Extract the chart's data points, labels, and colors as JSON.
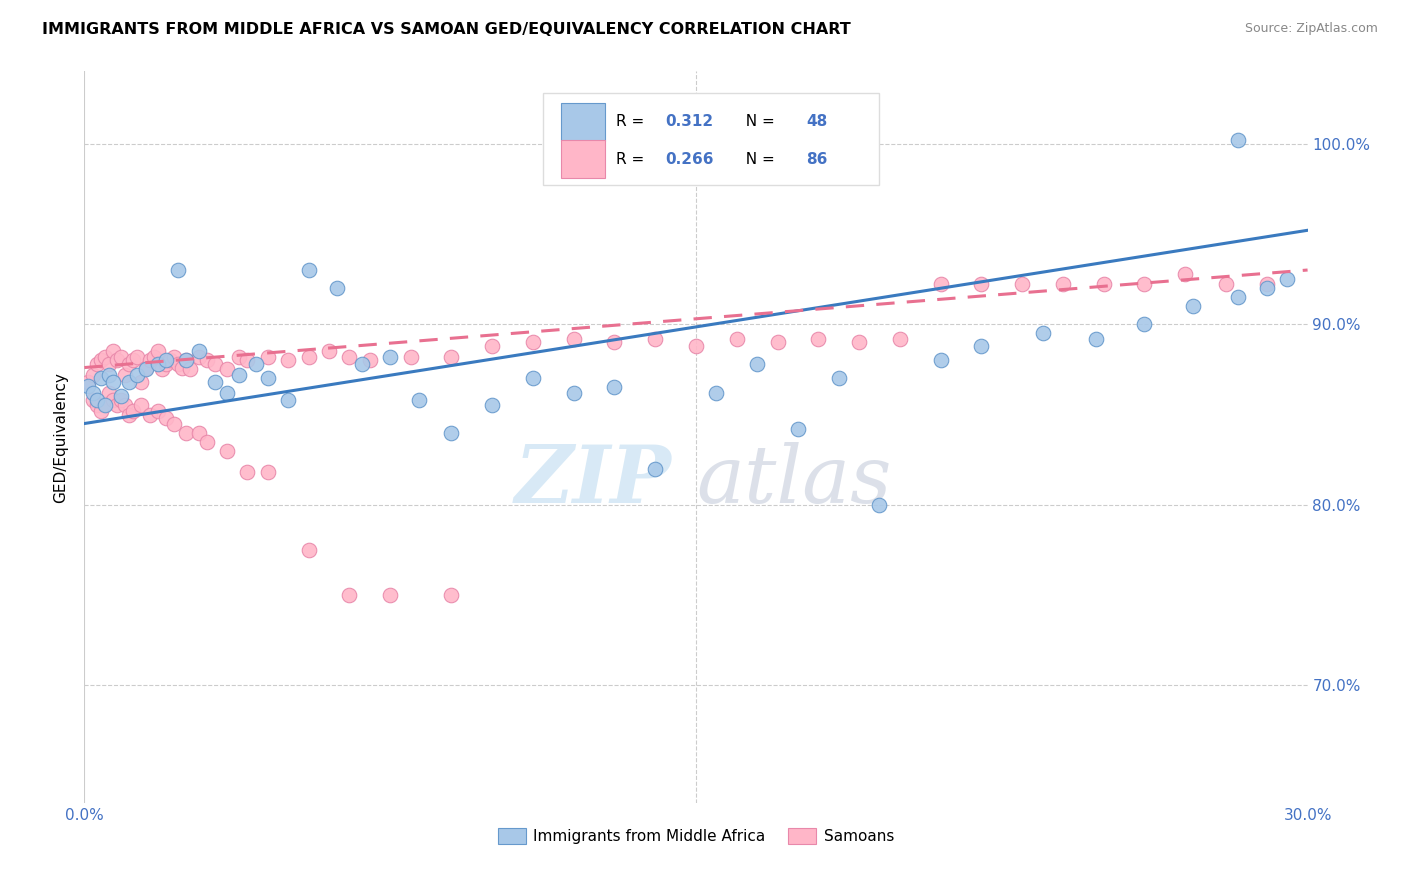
{
  "title": "IMMIGRANTS FROM MIDDLE AFRICA VS SAMOAN GED/EQUIVALENCY CORRELATION CHART",
  "source": "Source: ZipAtlas.com",
  "ylabel": "GED/Equivalency",
  "ytick_vals": [
    0.7,
    0.8,
    0.9,
    1.0
  ],
  "ytick_labels": [
    "70.0%",
    "80.0%",
    "90.0%",
    "100.0%"
  ],
  "xlim": [
    0.0,
    0.3
  ],
  "ylim": [
    0.635,
    1.04
  ],
  "xtick_left": "0.0%",
  "xtick_right": "30.0%",
  "blue_color": "#a8c8e8",
  "blue_edge_color": "#6699cc",
  "pink_color": "#ffb6c8",
  "pink_edge_color": "#e888aa",
  "blue_line_color": "#3a7abf",
  "pink_line_color": "#e87090",
  "watermark_zip_color": "#c8dff0",
  "watermark_atlas_color": "#c8c8d8",
  "legend_box_color": "#f0f0f0",
  "tick_label_color": "#4472c4",
  "blue_x": [
    0.001,
    0.002,
    0.003,
    0.004,
    0.005,
    0.006,
    0.007,
    0.009,
    0.011,
    0.013,
    0.015,
    0.018,
    0.02,
    0.023,
    0.025,
    0.028,
    0.032,
    0.035,
    0.038,
    0.042,
    0.045,
    0.05,
    0.055,
    0.062,
    0.068,
    0.075,
    0.082,
    0.09,
    0.1,
    0.11,
    0.12,
    0.13,
    0.14,
    0.155,
    0.165,
    0.175,
    0.185,
    0.195,
    0.21,
    0.22,
    0.235,
    0.248,
    0.26,
    0.272,
    0.283,
    0.29,
    0.295,
    0.283
  ],
  "blue_y": [
    0.866,
    0.862,
    0.858,
    0.87,
    0.855,
    0.872,
    0.868,
    0.86,
    0.868,
    0.872,
    0.875,
    0.878,
    0.88,
    0.93,
    0.88,
    0.885,
    0.868,
    0.862,
    0.872,
    0.878,
    0.87,
    0.858,
    0.93,
    0.92,
    0.878,
    0.882,
    0.858,
    0.84,
    0.855,
    0.87,
    0.862,
    0.865,
    0.82,
    0.862,
    0.878,
    0.842,
    0.87,
    0.8,
    0.88,
    0.888,
    0.895,
    0.892,
    0.9,
    0.91,
    0.915,
    0.92,
    0.925,
    1.002
  ],
  "pink_x": [
    0.001,
    0.002,
    0.003,
    0.004,
    0.005,
    0.006,
    0.007,
    0.008,
    0.009,
    0.01,
    0.011,
    0.012,
    0.013,
    0.014,
    0.015,
    0.016,
    0.017,
    0.018,
    0.019,
    0.02,
    0.021,
    0.022,
    0.023,
    0.024,
    0.025,
    0.026,
    0.028,
    0.03,
    0.032,
    0.035,
    0.038,
    0.04,
    0.045,
    0.05,
    0.055,
    0.06,
    0.065,
    0.07,
    0.08,
    0.09,
    0.1,
    0.11,
    0.12,
    0.13,
    0.14,
    0.15,
    0.16,
    0.17,
    0.18,
    0.19,
    0.2,
    0.21,
    0.22,
    0.23,
    0.24,
    0.25,
    0.26,
    0.27,
    0.28,
    0.29,
    0.002,
    0.003,
    0.004,
    0.005,
    0.006,
    0.007,
    0.008,
    0.009,
    0.01,
    0.011,
    0.012,
    0.014,
    0.016,
    0.018,
    0.02,
    0.022,
    0.025,
    0.028,
    0.03,
    0.035,
    0.04,
    0.045,
    0.055,
    0.065,
    0.075,
    0.09
  ],
  "pink_y": [
    0.868,
    0.872,
    0.878,
    0.88,
    0.882,
    0.878,
    0.885,
    0.88,
    0.882,
    0.872,
    0.878,
    0.88,
    0.882,
    0.868,
    0.876,
    0.88,
    0.882,
    0.885,
    0.875,
    0.878,
    0.88,
    0.882,
    0.878,
    0.876,
    0.88,
    0.875,
    0.882,
    0.88,
    0.878,
    0.875,
    0.882,
    0.88,
    0.882,
    0.88,
    0.882,
    0.885,
    0.882,
    0.88,
    0.882,
    0.882,
    0.888,
    0.89,
    0.892,
    0.89,
    0.892,
    0.888,
    0.892,
    0.89,
    0.892,
    0.89,
    0.892,
    0.922,
    0.922,
    0.922,
    0.922,
    0.922,
    0.922,
    0.928,
    0.922,
    0.922,
    0.858,
    0.855,
    0.852,
    0.856,
    0.862,
    0.858,
    0.855,
    0.858,
    0.855,
    0.85,
    0.852,
    0.855,
    0.85,
    0.852,
    0.848,
    0.845,
    0.84,
    0.84,
    0.835,
    0.83,
    0.818,
    0.818,
    0.775,
    0.75,
    0.75,
    0.75
  ]
}
